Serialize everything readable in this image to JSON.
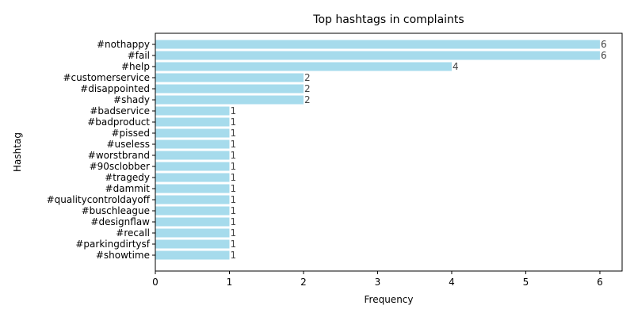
{
  "chart_data": {
    "type": "bar",
    "orientation": "horizontal",
    "title": "Top hashtags in complaints",
    "xlabel": "Frequency",
    "ylabel": "Hashtag",
    "xlim": [
      0,
      6.3
    ],
    "xticks": [
      "0",
      "1",
      "2",
      "3",
      "4",
      "5",
      "6"
    ],
    "grid": false,
    "bar_color": "#a6dbec",
    "categories": [
      "#nothappy",
      "#fail",
      "#help",
      "#customerservice",
      "#disappointed",
      "#shady",
      "#badservice",
      "#badproduct",
      "#pissed",
      "#useless",
      "#worstbrand",
      "#90sclobber",
      "#tragedy",
      "#dammit",
      "#qualitycontroldayoff",
      "#buschleague",
      "#designflaw",
      "#recall",
      "#parkingdirtysf",
      "#showtime"
    ],
    "values": [
      6,
      6,
      4,
      2,
      2,
      2,
      1,
      1,
      1,
      1,
      1,
      1,
      1,
      1,
      1,
      1,
      1,
      1,
      1,
      1
    ],
    "data_labels": [
      "6",
      "6",
      "4",
      "2",
      "2",
      "2",
      "1",
      "1",
      "1",
      "1",
      "1",
      "1",
      "1",
      "1",
      "1",
      "1",
      "1",
      "1",
      "1",
      "1"
    ]
  }
}
